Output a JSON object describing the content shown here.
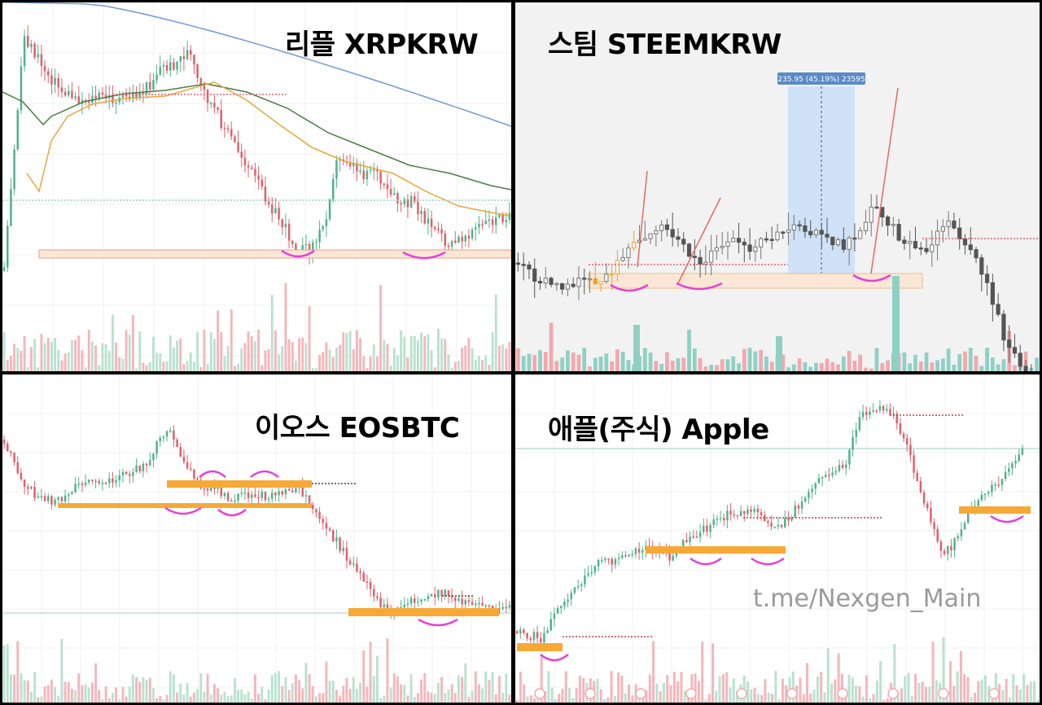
{
  "panels": [
    {
      "title": "리플 XRPKRW",
      "bg": "#ffffff"
    },
    {
      "title": "스팀 STEEMKRW",
      "bg": "#f2f2f2",
      "measure_label": "235.95 (45.19%) 23595"
    },
    {
      "title": "이오스 EOSBTC",
      "bg": "#ffffff"
    },
    {
      "title": "애플(주식) Apple",
      "bg": "#ffffff"
    }
  ],
  "watermark": "t.me/Nexgen_Main",
  "colors": {
    "up_candle": "#4fb389",
    "down_candle": "#e0606a",
    "support_zone": "#f6c48a",
    "orange_bar": "#f7a937",
    "highlight_arc": "#e83fd6",
    "dark_candle": "#555555",
    "measure_box": "#cfe2f7",
    "measure_label_bg": "#5a8ac6",
    "ma_blue": "#6f9ad6",
    "ma_green": "#4b7d45",
    "ma_orange": "#e7a63a"
  },
  "chart_data": [
    {
      "type": "candlestick",
      "title": "리플 XRPKRW",
      "close_trend": [
        330,
        190,
        40,
        60,
        80,
        95,
        110,
        115,
        120,
        118,
        116,
        118,
        120,
        116,
        112,
        100,
        80,
        80,
        70,
        60,
        100,
        120,
        140,
        160,
        180,
        200,
        220,
        240,
        260,
        280,
        300,
        305,
        295,
        270,
        200,
        190,
        200,
        210,
        200,
        230,
        240,
        250,
        245,
        260,
        275,
        290,
        300,
        290,
        280,
        275,
        270,
        265,
        260
      ]
    },
    {
      "type": "candlestick",
      "title": "스팀 STEEMKRW",
      "close_trend": [
        320,
        330,
        340,
        345,
        350,
        345,
        340,
        345,
        340,
        330,
        320,
        300,
        290,
        280,
        270,
        290,
        300,
        310,
        320,
        310,
        300,
        295,
        300,
        310,
        295,
        290,
        285,
        270,
        275,
        280,
        290,
        295,
        300,
        290,
        270,
        250,
        260,
        280,
        300,
        300,
        310,
        290,
        270,
        280,
        300,
        320,
        340,
        380,
        420,
        440,
        460,
        470
      ]
    },
    {
      "type": "candlestick",
      "title": "이오스 EOSBTC",
      "close_trend": [
        540,
        575,
        600,
        610,
        615,
        610,
        600,
        595,
        590,
        588,
        585,
        580,
        570,
        545,
        530,
        560,
        585,
        600,
        598,
        610,
        612,
        605,
        610,
        606,
        600,
        598,
        620,
        640,
        660,
        680,
        700,
        720,
        745,
        748,
        742,
        735,
        730,
        728,
        730,
        740,
        738,
        745,
        748,
        748
      ]
    },
    {
      "type": "candlestick",
      "title": "애플(주식) Apple",
      "close_trend": [
        775,
        780,
        785,
        760,
        740,
        720,
        705,
        690,
        690,
        680,
        675,
        670,
        680,
        685,
        670,
        660,
        650,
        640,
        630,
        630,
        625,
        640,
        645,
        640,
        620,
        600,
        590,
        580,
        570,
        520,
        500,
        505,
        510,
        540,
        590,
        630,
        680,
        670,
        640,
        620,
        600,
        590,
        570,
        555
      ]
    }
  ]
}
